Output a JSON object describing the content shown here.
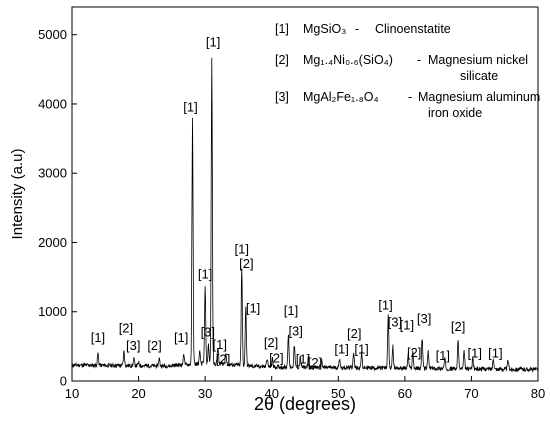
{
  "chart_data": {
    "type": "line",
    "xlabel": "2θ (degrees)",
    "ylabel": "Intensity (a.u)",
    "xlim": [
      10,
      80
    ],
    "ylim": [
      0,
      5400
    ],
    "xticks": [
      10,
      20,
      30,
      40,
      50,
      60,
      70,
      80
    ],
    "yticks": [
      0,
      1000,
      2000,
      3000,
      4000,
      5000
    ],
    "grid": false,
    "legend_position": "top-right",
    "line_color": "#000000",
    "legend": [
      {
        "tag": "[1]",
        "formula": "MgSiO₃",
        "sep": "-",
        "name": "Clinoenstatite"
      },
      {
        "tag": "[2]",
        "formula": "Mg₁.₄Ni₀.₆(SiO₄)",
        "sep": "-",
        "name": "Magnesium nickel silicate"
      },
      {
        "tag": "[3]",
        "formula": "MgAl₂Fe₁.₈O₄",
        "sep": "-",
        "name": "Magnesium aluminum iron oxide"
      }
    ],
    "peaks": [
      {
        "x": 13.9,
        "y": 400
      },
      {
        "x": 17.8,
        "y": 430
      },
      {
        "x": 19.3,
        "y": 320
      },
      {
        "x": 20.0,
        "y": 260
      },
      {
        "x": 23.1,
        "y": 330
      },
      {
        "x": 26.8,
        "y": 400
      },
      {
        "x": 28.1,
        "y": 3780
      },
      {
        "x": 29.2,
        "y": 420
      },
      {
        "x": 30.0,
        "y": 1350
      },
      {
        "x": 30.5,
        "y": 520
      },
      {
        "x": 31.0,
        "y": 4650
      },
      {
        "x": 31.9,
        "y": 500
      },
      {
        "x": 33.1,
        "y": 420
      },
      {
        "x": 35.5,
        "y": 1620
      },
      {
        "x": 36.1,
        "y": 1080
      },
      {
        "x": 39.3,
        "y": 330
      },
      {
        "x": 40.1,
        "y": 320
      },
      {
        "x": 42.5,
        "y": 680
      },
      {
        "x": 43.4,
        "y": 520
      },
      {
        "x": 44.3,
        "y": 340
      },
      {
        "x": 45.5,
        "y": 330
      },
      {
        "x": 47.5,
        "y": 300
      },
      {
        "x": 50.2,
        "y": 330
      },
      {
        "x": 52.3,
        "y": 420
      },
      {
        "x": 53.5,
        "y": 400
      },
      {
        "x": 57.5,
        "y": 960
      },
      {
        "x": 58.2,
        "y": 500
      },
      {
        "x": 60.5,
        "y": 380
      },
      {
        "x": 61.2,
        "y": 420
      },
      {
        "x": 62.6,
        "y": 620
      },
      {
        "x": 63.5,
        "y": 420
      },
      {
        "x": 66.0,
        "y": 320
      },
      {
        "x": 68.0,
        "y": 590
      },
      {
        "x": 68.9,
        "y": 420
      },
      {
        "x": 70.2,
        "y": 330
      },
      {
        "x": 73.3,
        "y": 330
      },
      {
        "x": 75.5,
        "y": 300
      }
    ],
    "peak_labels": [
      {
        "text": "[1]",
        "x": 13.9,
        "y": 560
      },
      {
        "text": "[2]",
        "x": 18.1,
        "y": 700
      },
      {
        "text": "[3]",
        "x": 19.2,
        "y": 450
      },
      {
        "text": "[2]",
        "x": 22.4,
        "y": 450
      },
      {
        "text": "[1]",
        "x": 26.4,
        "y": 560
      },
      {
        "text": "[1]",
        "x": 27.8,
        "y": 3890
      },
      {
        "text": "[1]",
        "x": 30.0,
        "y": 1480
      },
      {
        "text": "[3]",
        "x": 30.4,
        "y": 640
      },
      {
        "text": "[1]",
        "x": 31.2,
        "y": 4830
      },
      {
        "text": "[1]",
        "x": 32.2,
        "y": 460
      },
      {
        "text": "[2]",
        "x": 32.7,
        "y": 250
      },
      {
        "text": "[1]",
        "x": 35.5,
        "y": 1840
      },
      {
        "text": "[2]",
        "x": 36.2,
        "y": 1630
      },
      {
        "text": "[1]",
        "x": 37.2,
        "y": 990
      },
      {
        "text": "[2]",
        "x": 39.9,
        "y": 490
      },
      {
        "text": "[2]",
        "x": 40.7,
        "y": 270
      },
      {
        "text": "[1]",
        "x": 42.9,
        "y": 950
      },
      {
        "text": "[3]",
        "x": 43.6,
        "y": 660
      },
      {
        "text": "[1]",
        "x": 44.7,
        "y": 250
      },
      {
        "text": "[2]",
        "x": 46.5,
        "y": 200
      },
      {
        "text": "[1]",
        "x": 50.5,
        "y": 400
      },
      {
        "text": "[2]",
        "x": 52.4,
        "y": 620
      },
      {
        "text": "[1]",
        "x": 53.5,
        "y": 400
      },
      {
        "text": "[1]",
        "x": 57.1,
        "y": 1030
      },
      {
        "text": "[3]",
        "x": 58.5,
        "y": 790
      },
      {
        "text": "[1]",
        "x": 60.3,
        "y": 740
      },
      {
        "text": "[2]",
        "x": 61.4,
        "y": 350
      },
      {
        "text": "[3]",
        "x": 62.9,
        "y": 840
      },
      {
        "text": "[1]",
        "x": 65.7,
        "y": 300
      },
      {
        "text": "[2]",
        "x": 68.0,
        "y": 720
      },
      {
        "text": "[1]",
        "x": 70.5,
        "y": 340
      },
      {
        "text": "[1]",
        "x": 73.6,
        "y": 340
      }
    ]
  }
}
